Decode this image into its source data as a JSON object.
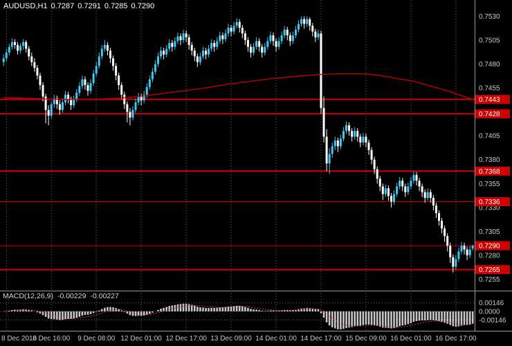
{
  "header": {
    "symbol_tf": "AUDUSD,H1",
    "open": "0.7287",
    "high": "0.7291",
    "low": "0.7285",
    "close": "0.7290"
  },
  "chart_data": {
    "type": "candlestick",
    "title": "AUDUSD,H1",
    "symbol": "AUDUSD",
    "timeframe": "H1",
    "ylim": [
      0.7243,
      0.7547
    ],
    "grid": "vertical-dotted",
    "legend_position": "none",
    "price_ticks": [
      "0.7530",
      "0.7505",
      "0.7480",
      "0.7455",
      "0.7405",
      "0.7380",
      "0.7355",
      "0.7330",
      "0.7305",
      "0.7280",
      "0.7255"
    ],
    "time_labels": [
      {
        "text": "8 Dec 2016",
        "bar": 1
      },
      {
        "text": "8 Dec 16:00",
        "bar": 17
      },
      {
        "text": "9 Dec 08:00",
        "bar": 33
      },
      {
        "text": "12 Dec 01:00",
        "bar": 49
      },
      {
        "text": "12 Dec 17:00",
        "bar": 65
      },
      {
        "text": "13 Dec 09:00",
        "bar": 81
      },
      {
        "text": "14 Dec 01:00",
        "bar": 97
      },
      {
        "text": "14 Dec 17:00",
        "bar": 113
      },
      {
        "text": "15 Dec 09:00",
        "bar": 129
      },
      {
        "text": "16 Dec 01:00",
        "bar": 145
      },
      {
        "text": "16 Dec 17:00",
        "bar": 161
      }
    ],
    "horizontal_lines": [
      {
        "price": 0.7443,
        "label": "0.7443",
        "weight": 2
      },
      {
        "price": 0.7428,
        "label": "0.7428",
        "weight": 2
      },
      {
        "price": 0.7368,
        "label": "0.7368",
        "weight": 2
      },
      {
        "price": 0.7336,
        "label": "0.7336",
        "weight": 1
      },
      {
        "price": 0.729,
        "label": "0.7290",
        "weight": 1
      },
      {
        "price": 0.7265,
        "label": "0.7265",
        "weight": 2
      }
    ],
    "ma_line": {
      "label": "moving-average",
      "points": [
        [
          0,
          0.7445
        ],
        [
          10,
          0.7444
        ],
        [
          20,
          0.7443
        ],
        [
          30,
          0.7443
        ],
        [
          40,
          0.7444
        ],
        [
          48,
          0.7446
        ],
        [
          56,
          0.7449
        ],
        [
          64,
          0.7452
        ],
        [
          72,
          0.7455
        ],
        [
          80,
          0.7459
        ],
        [
          88,
          0.7462
        ],
        [
          96,
          0.7465
        ],
        [
          104,
          0.7467
        ],
        [
          112,
          0.7469
        ],
        [
          120,
          0.747
        ],
        [
          128,
          0.747
        ],
        [
          134,
          0.7468
        ],
        [
          140,
          0.7465
        ],
        [
          146,
          0.7462
        ],
        [
          152,
          0.7457
        ],
        [
          158,
          0.7452
        ],
        [
          163,
          0.7447
        ],
        [
          167,
          0.7443
        ]
      ]
    },
    "indicator": {
      "label": "MACD(12,26,9)",
      "macd_value": "-0.00229",
      "signal_value": "-0.00227",
      "params": {
        "fast": 12,
        "slow": 26,
        "signal": 9
      },
      "axis_ticks": [
        {
          "text": "0.00146",
          "value": 0.00146
        },
        {
          "text": "0.0000",
          "value": 0
        },
        {
          "text": "-0.00146",
          "value": -0.00146
        }
      ]
    },
    "colors": {
      "background": "#000000",
      "bull": "#3FC9F2",
      "bear": "#FFFFFF",
      "line_red": "#D40000",
      "tag_bg": "#CE0000",
      "tag_text": "#FFFFFF",
      "axis_text": "#C9C9C9",
      "grid": "#6E6E6E",
      "separator": "#9A9A9A",
      "histogram": "#C8C8C8",
      "signal": "#E23B3B",
      "ma": "#C00000",
      "header_text": "#FFFFFF"
    },
    "candles": [
      [
        0.7482,
        0.749,
        0.7478,
        0.7486
      ],
      [
        0.7486,
        0.7496,
        0.7483,
        0.7492
      ],
      [
        0.7492,
        0.7501,
        0.7489,
        0.7498
      ],
      [
        0.7498,
        0.7507,
        0.7495,
        0.7503
      ],
      [
        0.7503,
        0.7506,
        0.7496,
        0.75
      ],
      [
        0.75,
        0.7503,
        0.749,
        0.7494
      ],
      [
        0.7494,
        0.7502,
        0.7491,
        0.7499
      ],
      [
        0.7499,
        0.7506,
        0.7495,
        0.7503
      ],
      [
        0.7503,
        0.7505,
        0.7492,
        0.7496
      ],
      [
        0.7496,
        0.7499,
        0.7484,
        0.7488
      ],
      [
        0.7488,
        0.7492,
        0.7478,
        0.7482
      ],
      [
        0.7482,
        0.7486,
        0.7472,
        0.7476
      ],
      [
        0.7476,
        0.7479,
        0.7464,
        0.7468
      ],
      [
        0.7468,
        0.7471,
        0.7453,
        0.7458
      ],
      [
        0.7458,
        0.7461,
        0.7441,
        0.7446
      ],
      [
        0.7446,
        0.7449,
        0.7418,
        0.7432
      ],
      [
        0.7432,
        0.7437,
        0.7416,
        0.7426
      ],
      [
        0.7426,
        0.7441,
        0.7423,
        0.7438
      ],
      [
        0.7438,
        0.7448,
        0.7434,
        0.7444
      ],
      [
        0.7444,
        0.7447,
        0.7433,
        0.7438
      ],
      [
        0.7438,
        0.7442,
        0.7427,
        0.7432
      ],
      [
        0.7432,
        0.7444,
        0.7429,
        0.744
      ],
      [
        0.744,
        0.7452,
        0.7437,
        0.7448
      ],
      [
        0.7448,
        0.7451,
        0.7439,
        0.7443
      ],
      [
        0.7443,
        0.7446,
        0.7432,
        0.7437
      ],
      [
        0.7437,
        0.7447,
        0.7434,
        0.7443
      ],
      [
        0.7443,
        0.7454,
        0.744,
        0.745
      ],
      [
        0.745,
        0.7461,
        0.7447,
        0.7457
      ],
      [
        0.7457,
        0.7468,
        0.7454,
        0.7464
      ],
      [
        0.7464,
        0.7467,
        0.7453,
        0.7458
      ],
      [
        0.7458,
        0.7461,
        0.7447,
        0.7452
      ],
      [
        0.7452,
        0.7464,
        0.7449,
        0.746
      ],
      [
        0.746,
        0.7474,
        0.7457,
        0.747
      ],
      [
        0.747,
        0.7482,
        0.7467,
        0.7478
      ],
      [
        0.7478,
        0.7492,
        0.7475,
        0.7488
      ],
      [
        0.7488,
        0.75,
        0.7485,
        0.7496
      ],
      [
        0.7496,
        0.7505,
        0.7493,
        0.75
      ],
      [
        0.75,
        0.7503,
        0.7489,
        0.7494
      ],
      [
        0.7494,
        0.7497,
        0.7481,
        0.7486
      ],
      [
        0.7486,
        0.7489,
        0.7473,
        0.7478
      ],
      [
        0.7478,
        0.7481,
        0.7463,
        0.7468
      ],
      [
        0.7468,
        0.7471,
        0.7453,
        0.7458
      ],
      [
        0.7458,
        0.7461,
        0.7443,
        0.7448
      ],
      [
        0.7448,
        0.7451,
        0.7433,
        0.7438
      ],
      [
        0.7438,
        0.7441,
        0.7419,
        0.743
      ],
      [
        0.743,
        0.7434,
        0.7416,
        0.7424
      ],
      [
        0.7424,
        0.7436,
        0.7421,
        0.7432
      ],
      [
        0.7432,
        0.7444,
        0.7429,
        0.744
      ],
      [
        0.744,
        0.745,
        0.7437,
        0.7446
      ],
      [
        0.7446,
        0.7449,
        0.7437,
        0.7442
      ],
      [
        0.7442,
        0.7452,
        0.7439,
        0.7448
      ],
      [
        0.7448,
        0.746,
        0.7445,
        0.7456
      ],
      [
        0.7456,
        0.7468,
        0.7453,
        0.7464
      ],
      [
        0.7464,
        0.7476,
        0.7461,
        0.7472
      ],
      [
        0.7472,
        0.7484,
        0.7469,
        0.748
      ],
      [
        0.748,
        0.7492,
        0.7477,
        0.7488
      ],
      [
        0.7488,
        0.7498,
        0.7485,
        0.7494
      ],
      [
        0.7494,
        0.7497,
        0.7485,
        0.749
      ],
      [
        0.749,
        0.75,
        0.7487,
        0.7496
      ],
      [
        0.7496,
        0.7506,
        0.7493,
        0.7502
      ],
      [
        0.7502,
        0.7505,
        0.7493,
        0.7498
      ],
      [
        0.7498,
        0.7508,
        0.7495,
        0.7504
      ],
      [
        0.7504,
        0.7513,
        0.7501,
        0.7509
      ],
      [
        0.7509,
        0.7512,
        0.75,
        0.7505
      ],
      [
        0.7505,
        0.7516,
        0.7502,
        0.7512
      ],
      [
        0.7512,
        0.7515,
        0.7503,
        0.7508
      ],
      [
        0.7508,
        0.7511,
        0.7495,
        0.75
      ],
      [
        0.75,
        0.7503,
        0.7489,
        0.7494
      ],
      [
        0.7494,
        0.7497,
        0.7483,
        0.7488
      ],
      [
        0.7488,
        0.7491,
        0.7477,
        0.7482
      ],
      [
        0.7482,
        0.7492,
        0.7479,
        0.7488
      ],
      [
        0.7488,
        0.7498,
        0.7485,
        0.7494
      ],
      [
        0.7494,
        0.7497,
        0.7485,
        0.749
      ],
      [
        0.749,
        0.75,
        0.7487,
        0.7496
      ],
      [
        0.7496,
        0.7506,
        0.7493,
        0.7502
      ],
      [
        0.7502,
        0.7505,
        0.7493,
        0.7498
      ],
      [
        0.7498,
        0.7508,
        0.7495,
        0.7504
      ],
      [
        0.7504,
        0.7514,
        0.7501,
        0.751
      ],
      [
        0.751,
        0.7513,
        0.7501,
        0.7506
      ],
      [
        0.7506,
        0.7516,
        0.7503,
        0.7512
      ],
      [
        0.7512,
        0.7522,
        0.7509,
        0.7518
      ],
      [
        0.7518,
        0.7521,
        0.7509,
        0.7514
      ],
      [
        0.7514,
        0.7524,
        0.7511,
        0.752
      ],
      [
        0.752,
        0.7528,
        0.7517,
        0.7524
      ],
      [
        0.7524,
        0.7527,
        0.7513,
        0.7518
      ],
      [
        0.7518,
        0.7521,
        0.7507,
        0.7512
      ],
      [
        0.7512,
        0.7515,
        0.75,
        0.7505
      ],
      [
        0.7505,
        0.7508,
        0.7493,
        0.7498
      ],
      [
        0.7498,
        0.7501,
        0.7487,
        0.7492
      ],
      [
        0.7492,
        0.7502,
        0.7489,
        0.7498
      ],
      [
        0.7498,
        0.7508,
        0.7495,
        0.7504
      ],
      [
        0.7504,
        0.7507,
        0.7493,
        0.7498
      ],
      [
        0.7498,
        0.7501,
        0.7487,
        0.7492
      ],
      [
        0.7492,
        0.7502,
        0.7489,
        0.7498
      ],
      [
        0.7498,
        0.7508,
        0.7495,
        0.7504
      ],
      [
        0.7504,
        0.7514,
        0.7501,
        0.751
      ],
      [
        0.751,
        0.7513,
        0.7499,
        0.7504
      ],
      [
        0.7504,
        0.7507,
        0.7493,
        0.7498
      ],
      [
        0.7498,
        0.7508,
        0.7495,
        0.7504
      ],
      [
        0.7504,
        0.7514,
        0.7501,
        0.751
      ],
      [
        0.751,
        0.752,
        0.7507,
        0.7516
      ],
      [
        0.7516,
        0.7519,
        0.7505,
        0.751
      ],
      [
        0.751,
        0.7513,
        0.7499,
        0.7504
      ],
      [
        0.7504,
        0.7514,
        0.7501,
        0.751
      ],
      [
        0.751,
        0.752,
        0.7507,
        0.7516
      ],
      [
        0.7516,
        0.7526,
        0.7513,
        0.7522
      ],
      [
        0.7522,
        0.753,
        0.7519,
        0.7527
      ],
      [
        0.7527,
        0.753,
        0.7517,
        0.7522
      ],
      [
        0.7522,
        0.753,
        0.7519,
        0.7527
      ],
      [
        0.7527,
        0.7529,
        0.7515,
        0.752
      ],
      [
        0.752,
        0.7523,
        0.7509,
        0.7514
      ],
      [
        0.7514,
        0.7517,
        0.7503,
        0.7508
      ],
      [
        0.7508,
        0.7516,
        0.7505,
        0.7512
      ],
      [
        0.7512,
        0.7515,
        0.7428,
        0.7434
      ],
      [
        0.7434,
        0.7446,
        0.7398,
        0.7404
      ],
      [
        0.7404,
        0.7412,
        0.7368,
        0.7376
      ],
      [
        0.7376,
        0.7392,
        0.7365,
        0.7386
      ],
      [
        0.7386,
        0.7398,
        0.7382,
        0.7394
      ],
      [
        0.7394,
        0.7404,
        0.739,
        0.74
      ],
      [
        0.74,
        0.7403,
        0.7388,
        0.7394
      ],
      [
        0.7394,
        0.7406,
        0.7391,
        0.7402
      ],
      [
        0.7402,
        0.7414,
        0.7399,
        0.741
      ],
      [
        0.741,
        0.742,
        0.7407,
        0.7416
      ],
      [
        0.7416,
        0.7419,
        0.7405,
        0.741
      ],
      [
        0.741,
        0.7413,
        0.7399,
        0.7404
      ],
      [
        0.7404,
        0.7414,
        0.7401,
        0.741
      ],
      [
        0.741,
        0.7413,
        0.7399,
        0.7404
      ],
      [
        0.7404,
        0.7407,
        0.7393,
        0.7398
      ],
      [
        0.7398,
        0.7408,
        0.7395,
        0.7404
      ],
      [
        0.7404,
        0.7407,
        0.7393,
        0.7398
      ],
      [
        0.7398,
        0.7401,
        0.7385,
        0.739
      ],
      [
        0.739,
        0.7393,
        0.7375,
        0.738
      ],
      [
        0.738,
        0.7383,
        0.7365,
        0.737
      ],
      [
        0.737,
        0.7373,
        0.7355,
        0.736
      ],
      [
        0.736,
        0.7363,
        0.7347,
        0.7352
      ],
      [
        0.7352,
        0.7355,
        0.7338,
        0.7344
      ],
      [
        0.7344,
        0.7354,
        0.7341,
        0.735
      ],
      [
        0.735,
        0.7353,
        0.7337,
        0.7342
      ],
      [
        0.7342,
        0.7345,
        0.733,
        0.7336
      ],
      [
        0.7336,
        0.7348,
        0.7333,
        0.7344
      ],
      [
        0.7344,
        0.7356,
        0.7341,
        0.7352
      ],
      [
        0.7352,
        0.7362,
        0.7349,
        0.7358
      ],
      [
        0.7358,
        0.7361,
        0.7347,
        0.7352
      ],
      [
        0.7352,
        0.7355,
        0.7341,
        0.7346
      ],
      [
        0.7346,
        0.7356,
        0.7343,
        0.7352
      ],
      [
        0.7352,
        0.7362,
        0.7349,
        0.7358
      ],
      [
        0.7358,
        0.7368,
        0.7355,
        0.7364
      ],
      [
        0.7364,
        0.7367,
        0.7353,
        0.7358
      ],
      [
        0.7358,
        0.7361,
        0.7347,
        0.7352
      ],
      [
        0.7352,
        0.7355,
        0.7341,
        0.7346
      ],
      [
        0.7346,
        0.7349,
        0.7335,
        0.734
      ],
      [
        0.734,
        0.735,
        0.7337,
        0.7346
      ],
      [
        0.7346,
        0.7349,
        0.7335,
        0.734
      ],
      [
        0.734,
        0.7343,
        0.7327,
        0.7332
      ],
      [
        0.7332,
        0.7335,
        0.7319,
        0.7324
      ],
      [
        0.7324,
        0.7327,
        0.7311,
        0.7316
      ],
      [
        0.7316,
        0.7319,
        0.7303,
        0.7308
      ],
      [
        0.7308,
        0.7311,
        0.7294,
        0.73
      ],
      [
        0.73,
        0.7303,
        0.7284,
        0.729
      ],
      [
        0.729,
        0.7293,
        0.7272,
        0.7278
      ],
      [
        0.7278,
        0.7281,
        0.7262,
        0.7268
      ],
      [
        0.7268,
        0.728,
        0.7265,
        0.7276
      ],
      [
        0.7276,
        0.7288,
        0.7273,
        0.7284
      ],
      [
        0.7284,
        0.7294,
        0.7281,
        0.729
      ],
      [
        0.729,
        0.7293,
        0.7281,
        0.7286
      ],
      [
        0.7286,
        0.7289,
        0.7275,
        0.728
      ],
      [
        0.728,
        0.729,
        0.7277,
        0.7286
      ],
      [
        0.7287,
        0.7291,
        0.7285,
        0.729
      ]
    ]
  }
}
